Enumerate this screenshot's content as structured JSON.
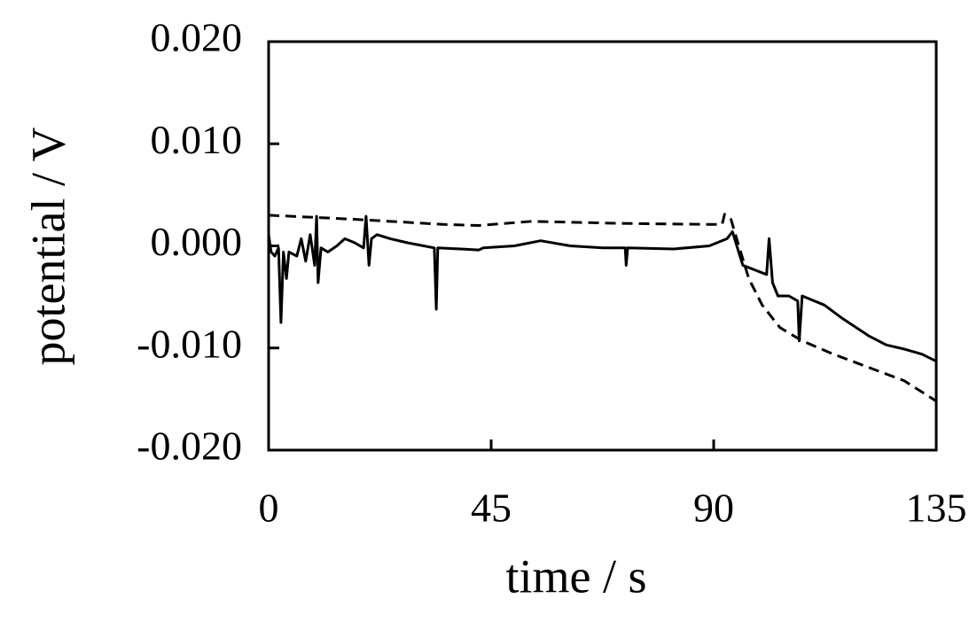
{
  "chart_data": {
    "type": "line",
    "xlabel": "time / s",
    "ylabel": "potential / V",
    "xlim": [
      0,
      135
    ],
    "xticks": [
      0,
      45,
      90,
      135
    ],
    "ylim": [
      -0.02,
      0.02
    ],
    "yticks": [
      {
        "value": -0.02,
        "label": "-0.020"
      },
      {
        "value": -0.01,
        "label": "-0.010"
      },
      {
        "value": 0,
        "label": "0.000"
      },
      {
        "value": 0.01,
        "label": "0.010"
      },
      {
        "value": 0.02,
        "label": "0.020"
      }
    ],
    "series": [
      {
        "color": "#000000",
        "dash": false,
        "x": [
          0,
          0.5,
          1.25,
          2,
          2.5,
          3,
          3.6,
          4.1,
          5.7,
          6.6,
          7.5,
          8.4,
          9.3,
          9.7,
          10,
          10.6,
          12,
          13.8,
          15.4,
          17.4,
          19.2,
          19.7,
          20.3,
          20.8,
          21.9,
          24.6,
          28.1,
          33.5,
          33.9,
          34.2,
          38.9,
          42.5,
          43.4,
          49.7,
          55,
          61,
          67.6,
          72.1,
          72.3,
          72.6,
          81.9,
          89.1,
          92.7,
          93.8,
          94.8,
          95.9,
          98,
          100.7,
          101.2,
          101.9,
          103,
          105.2,
          107,
          107.3,
          107.9,
          112.4,
          116,
          121.3,
          124.9,
          128.5,
          132.1,
          135
        ],
        "values": [
          0.0011,
          -0.0006,
          -0.001,
          -0.0002,
          -0.0075,
          -0.0006,
          -0.0032,
          -0.0006,
          -0.001,
          0.0007,
          -0.0015,
          0.0011,
          -0.0019,
          0.0029,
          -0.0036,
          -0.0002,
          -0.0006,
          0,
          0.0007,
          0.0003,
          -0.0002,
          0.0029,
          -0.0019,
          0.0007,
          0.0011,
          0.0007,
          0.0003,
          -0.0002,
          -0.0062,
          -0.0002,
          -0.0003,
          -0.0004,
          -0.0002,
          0,
          0.0005,
          0,
          -0.0002,
          -0.0002,
          -0.0019,
          -0.0002,
          -0.0003,
          0,
          0.0007,
          0.0014,
          -0.0002,
          -0.0019,
          -0.0023,
          -0.0028,
          0.0007,
          -0.0036,
          -0.0049,
          -0.0049,
          -0.0054,
          -0.0093,
          -0.0049,
          -0.0058,
          -0.0071,
          -0.0088,
          -0.0097,
          -0.0101,
          -0.0106,
          -0.0113
        ]
      },
      {
        "color": "#000000",
        "dash": true,
        "x": [
          0,
          17.4,
          35.3,
          42.5,
          53.2,
          71.1,
          89.1,
          91.7,
          92.2,
          93.5,
          94.9,
          97.1,
          99.8,
          103.4,
          107.9,
          114.2,
          121.3,
          128.5,
          135
        ],
        "values": [
          0.003,
          0.0026,
          0.0021,
          0.002,
          0.0024,
          0.0022,
          0.0021,
          0.0021,
          0.0031,
          0.0026,
          0.0003,
          -0.0032,
          -0.0058,
          -0.008,
          -0.0093,
          -0.0106,
          -0.0119,
          -0.0132,
          -0.0152
        ]
      }
    ]
  }
}
